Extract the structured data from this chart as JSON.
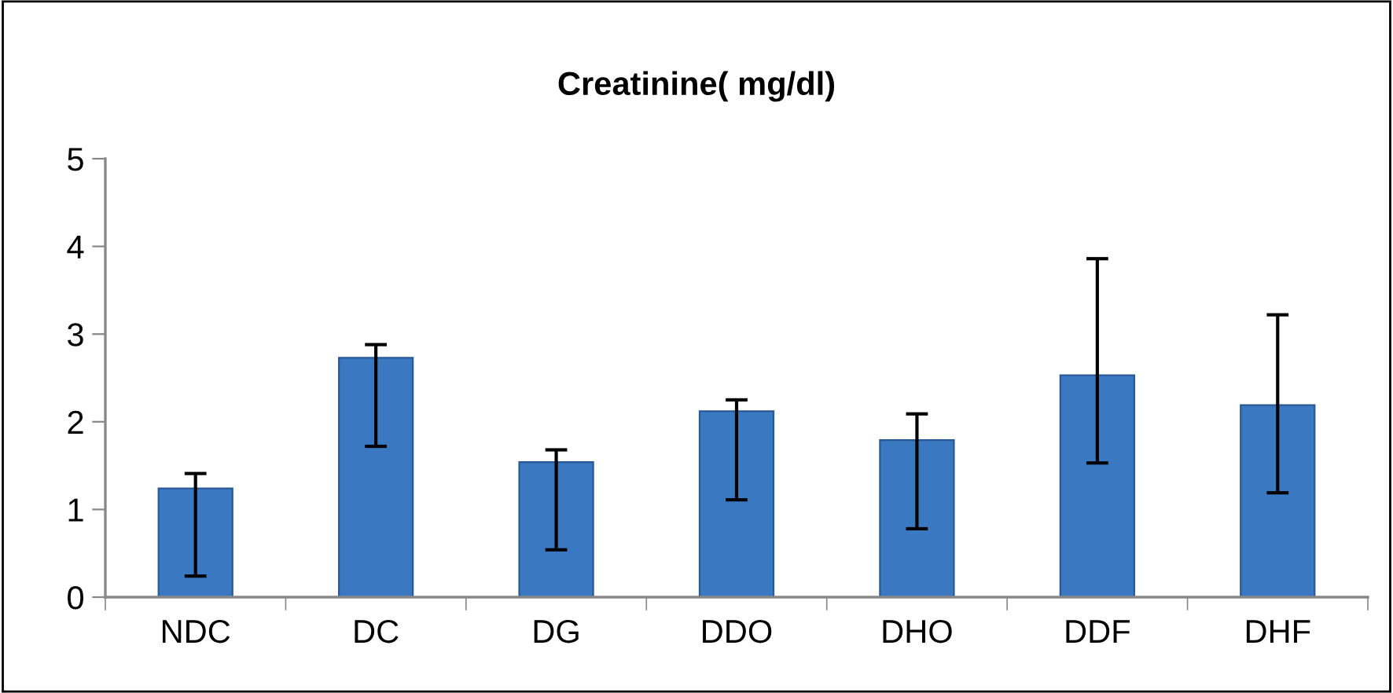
{
  "chart_data": {
    "type": "bar",
    "title": "Creatinine( mg/dl)",
    "categories": [
      "NDC",
      "DC",
      "DG",
      "DDO",
      "DHO",
      "DDF",
      "DHF"
    ],
    "values": [
      1.24,
      2.73,
      1.54,
      2.12,
      1.79,
      2.53,
      2.19
    ],
    "errors": [
      [
        0.24,
        1.41
      ],
      [
        1.72,
        2.88
      ],
      [
        0.54,
        1.68
      ],
      [
        1.11,
        2.25
      ],
      [
        0.78,
        2.09
      ],
      [
        1.53,
        3.86
      ],
      [
        1.19,
        3.22
      ]
    ],
    "color": "#3a78c2",
    "ylim": [
      0,
      5
    ],
    "yticks": [
      0,
      1,
      2,
      3,
      4,
      5
    ],
    "grid": false,
    "legend": false
  }
}
